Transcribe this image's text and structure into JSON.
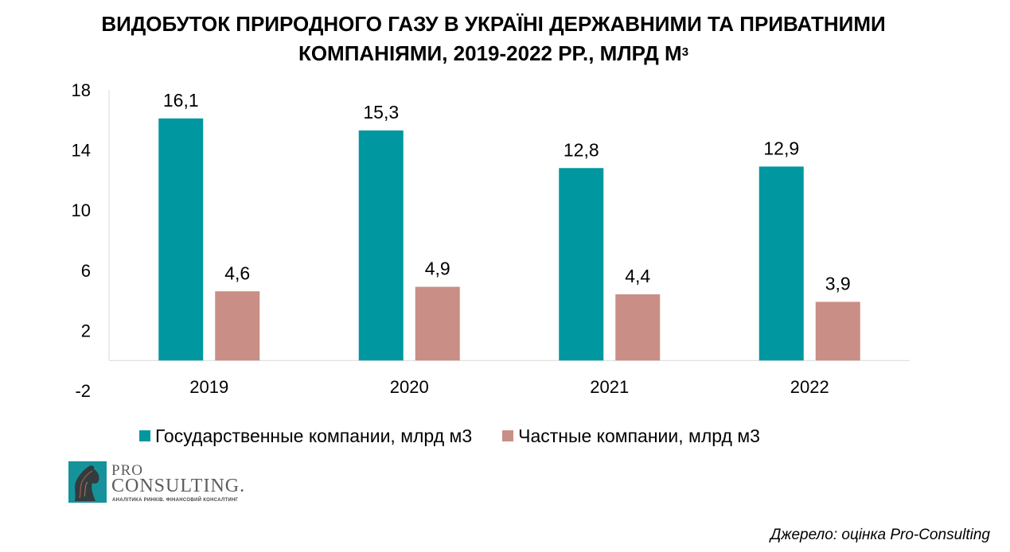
{
  "title_main": "ВИДОБУТОК ПРИРОДНОГО ГАЗУ В УКРАЇНІ ДЕРЖАВНИМИ ТА ПРИВАТНИМИ",
  "title_line2": "КОМПАНІЯМИ, 2019-2022 РР., МЛРД М",
  "title_sup": "3",
  "chart_data": {
    "type": "bar",
    "categories": [
      "2019",
      "2020",
      "2021",
      "2022"
    ],
    "series": [
      {
        "name": "Государственные компании, млрд м3",
        "values": [
          16.1,
          15.3,
          12.8,
          12.9
        ],
        "labels": [
          "16,1",
          "15,3",
          "12,8",
          "12,9"
        ],
        "color": "#0097a0"
      },
      {
        "name": "Частные компании, млрд м3",
        "values": [
          4.6,
          4.9,
          4.4,
          3.9
        ],
        "labels": [
          "4,6",
          "4,9",
          "4,4",
          "3,9"
        ],
        "color": "#c98e86"
      }
    ],
    "yticks": [
      "18",
      "14",
      "10",
      "6",
      "2",
      "-2"
    ],
    "ylim": [
      -2,
      18
    ],
    "grid": false,
    "legend_position": "bottom"
  },
  "logo": {
    "line1": "PRO",
    "line2": "CONSULTING.",
    "tagline": "АНАЛІТИКА РИНКІВ. ФІНАНСОВИЙ КОНСАЛТИНГ"
  },
  "source": "Джерело: оцінка Pro-Consulting"
}
